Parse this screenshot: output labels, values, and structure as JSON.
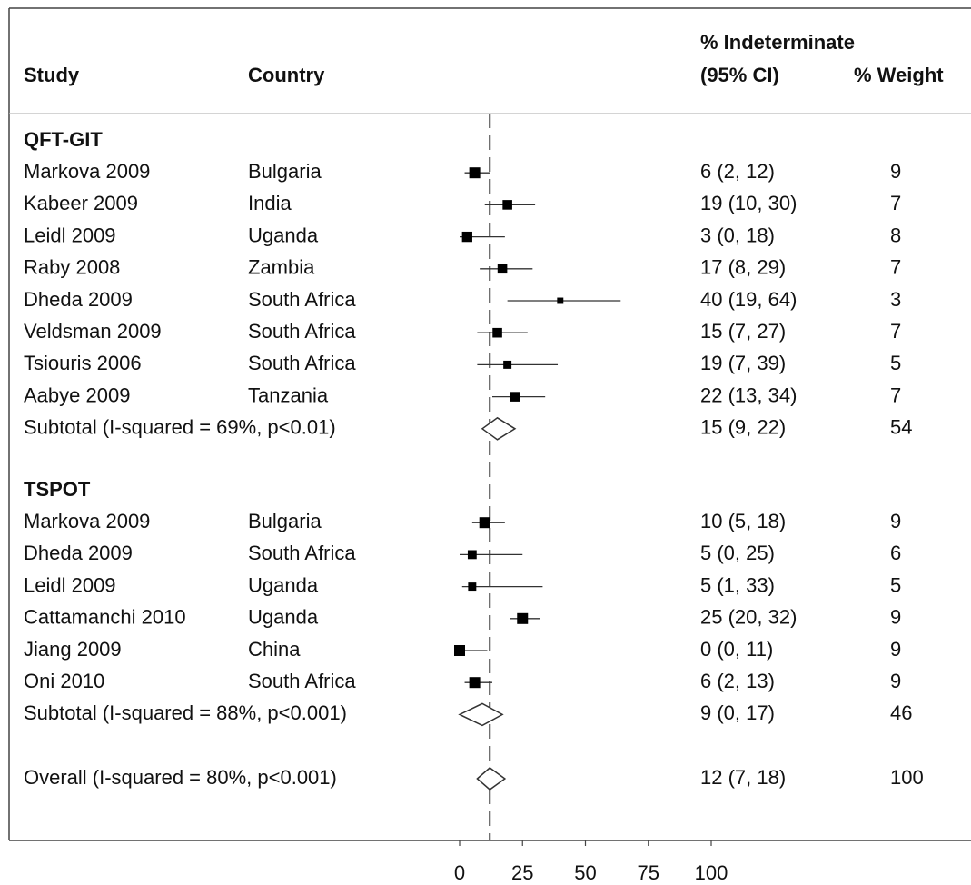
{
  "chart_data": {
    "type": "forest",
    "column_headers": {
      "study": "Study",
      "country": "Country",
      "estimate_line1": "% Indeterminate",
      "estimate_line2": "(95% CI)",
      "weight": "% Weight"
    },
    "groups": [
      {
        "name": "QFT-GIT",
        "studies": [
          {
            "study": "Markova 2009",
            "country": "Bulgaria",
            "value": 6,
            "lower": 2,
            "upper": 12,
            "value_label": "6 (2, 12)",
            "weight": 9
          },
          {
            "study": "Kabeer 2009",
            "country": "India",
            "value": 19,
            "lower": 10,
            "upper": 30,
            "value_label": "19 (10, 30)",
            "weight": 7
          },
          {
            "study": "Leidl 2009",
            "country": "Uganda",
            "value": 3,
            "lower": 0,
            "upper": 18,
            "value_label": "3 (0, 18)",
            "weight": 8
          },
          {
            "study": "Raby 2008",
            "country": "Zambia",
            "value": 17,
            "lower": 8,
            "upper": 29,
            "value_label": "17 (8, 29)",
            "weight": 7
          },
          {
            "study": "Dheda 2009",
            "country": "South Africa",
            "value": 40,
            "lower": 19,
            "upper": 64,
            "value_label": "40 (19, 64)",
            "weight": 3
          },
          {
            "study": "Veldsman 2009",
            "country": "South Africa",
            "value": 15,
            "lower": 7,
            "upper": 27,
            "value_label": "15 (7, 27)",
            "weight": 7
          },
          {
            "study": "Tsiouris 2006",
            "country": "South Africa",
            "value": 19,
            "lower": 7,
            "upper": 39,
            "value_label": "19 (7, 39)",
            "weight": 5
          },
          {
            "study": "Aabye 2009",
            "country": "Tanzania",
            "value": 22,
            "lower": 13,
            "upper": 34,
            "value_label": "22 (13, 34)",
            "weight": 7
          }
        ],
        "subtotal": {
          "label": "Subtotal (I-squared = 69%, p<0.01)",
          "value": 15,
          "lower": 9,
          "upper": 22,
          "value_label": "15 (9, 22)",
          "weight": 54
        }
      },
      {
        "name": "TSPOT",
        "studies": [
          {
            "study": "Markova 2009",
            "country": "Bulgaria",
            "value": 10,
            "lower": 5,
            "upper": 18,
            "value_label": "10 (5, 18)",
            "weight": 9
          },
          {
            "study": "Dheda 2009",
            "country": "South Africa",
            "value": 5,
            "lower": 0,
            "upper": 25,
            "value_label": "5 (0, 25)",
            "weight": 6
          },
          {
            "study": "Leidl 2009",
            "country": "Uganda",
            "value": 5,
            "lower": 1,
            "upper": 33,
            "value_label": "5 (1, 33)",
            "weight": 5
          },
          {
            "study": "Cattamanchi 2010",
            "country": "Uganda",
            "value": 25,
            "lower": 20,
            "upper": 32,
            "value_label": "25 (20, 32)",
            "weight": 9
          },
          {
            "study": "Jiang 2009",
            "country": "China",
            "value": 0,
            "lower": 0,
            "upper": 11,
            "value_label": "0 (0, 11)",
            "weight": 9
          },
          {
            "study": "Oni 2010",
            "country": "South Africa",
            "value": 6,
            "lower": 2,
            "upper": 13,
            "value_label": "6 (2, 13)",
            "weight": 9
          }
        ],
        "subtotal": {
          "label": "Subtotal (I-squared = 88%, p<0.001)",
          "value": 9,
          "lower": 0,
          "upper": 17,
          "value_label": "9 (0, 17)",
          "weight": 46
        }
      }
    ],
    "overall": {
      "label": "Overall (I-squared = 80%, p<0.001)",
      "value": 12,
      "lower": 7,
      "upper": 18,
      "value_label": "12 (7, 18)",
      "weight": 100
    },
    "xlim": [
      0,
      100
    ],
    "xticks": [
      0,
      25,
      50,
      75,
      100
    ],
    "color": "#000000"
  }
}
